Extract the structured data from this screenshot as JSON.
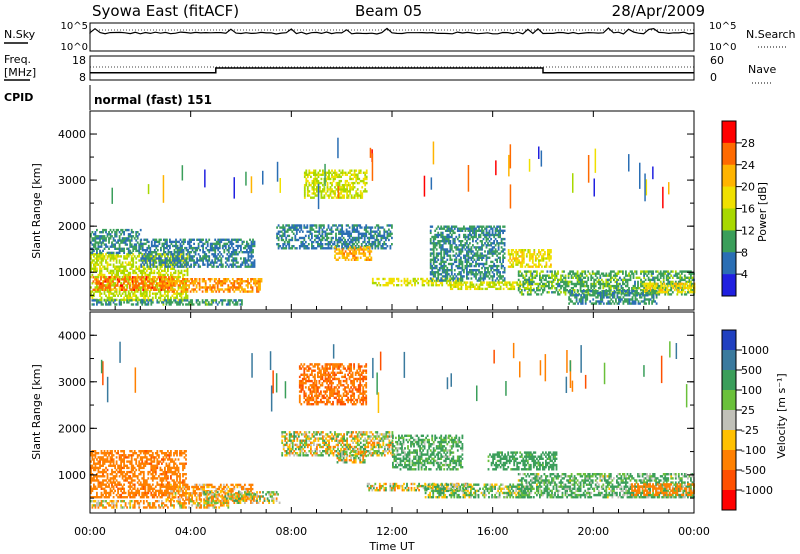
{
  "header": {
    "station": "Syowa East (fitACF)",
    "beam": "Beam 05",
    "date": "28/Apr/2009"
  },
  "top_panels": {
    "nsky": {
      "label": "N.Sky",
      "ticks": [
        "10^5",
        "10^0"
      ]
    },
    "nsearch": {
      "label": "N.Search",
      "ticks": [
        "10^5",
        "10^0"
      ]
    },
    "freq": {
      "label_line1": "Freq.",
      "label_line2": "[MHz]",
      "ticks": [
        "18",
        "8"
      ]
    },
    "nave": {
      "label": "Nave",
      "ticks": [
        "60",
        "0"
      ]
    },
    "cpid": {
      "label": "CPID",
      "value": "normal (fast) 151"
    }
  },
  "power_panel": {
    "ylabel": "Slant Range [km]",
    "colorbar_label": "Power [dB]",
    "colorbar_ticks": [
      "28",
      "24",
      "20",
      "16",
      "12",
      "8",
      "4"
    ],
    "colorbar_colors": [
      "#ff0000",
      "#ff6a00",
      "#ffb400",
      "#f0e000",
      "#a8d800",
      "#3a9e5a",
      "#2a6eb4",
      "#2020e0"
    ]
  },
  "velocity_panel": {
    "ylabel": "Slant Range [km]",
    "colorbar_label": "Velocity [m s⁻¹]",
    "colorbar_ticks": [
      "1000",
      "500",
      "100",
      "25",
      "-25",
      "-100",
      "-500",
      "-1000"
    ],
    "colorbar_colors": [
      "#2040c0",
      "#3a7a9e",
      "#3a9e5a",
      "#6ac03a",
      "#c0c0b8",
      "#ffc000",
      "#ff8000",
      "#ff5000",
      "#ff0000"
    ]
  },
  "xaxis": {
    "label": "Time UT",
    "ticks": [
      "00:00",
      "04:00",
      "08:00",
      "12:00",
      "16:00",
      "20:00",
      "00:00"
    ]
  },
  "chart_data": [
    {
      "type": "line",
      "name": "N.Sky",
      "x_range_hours": [
        0,
        24
      ],
      "yscale": "log",
      "ylim": [
        1,
        100000
      ],
      "description_level": "near top of range throughout"
    },
    {
      "type": "line",
      "name": "Freq.",
      "ylim": [
        8,
        18
      ],
      "x_hours": [
        0,
        5,
        5,
        18,
        18,
        24
      ],
      "values": [
        11,
        11,
        13,
        13,
        11,
        11
      ]
    },
    {
      "type": "heatmap",
      "name": "power",
      "x_range_hours": [
        0,
        24
      ],
      "ylim": [
        180,
        4500
      ],
      "yticks": [
        1000,
        2000,
        3000,
        4000
      ],
      "clim": [
        0,
        30
      ],
      "regions": [
        {
          "t0": 0.0,
          "t1": 3.9,
          "r0": 380,
          "r1": 1400,
          "v": 14
        },
        {
          "t0": 0.1,
          "t1": 3.4,
          "r0": 600,
          "r1": 900,
          "v": 24
        },
        {
          "t0": 3.0,
          "t1": 6.8,
          "r0": 560,
          "r1": 850,
          "v": 22
        },
        {
          "t0": 0.0,
          "t1": 6.0,
          "r0": 280,
          "r1": 400,
          "v": 9
        },
        {
          "t0": 0.0,
          "t1": 2.0,
          "r0": 1400,
          "r1": 1900,
          "v": 8
        },
        {
          "t0": 2.0,
          "t1": 6.5,
          "r0": 1100,
          "r1": 1700,
          "v": 7
        },
        {
          "t0": 8.5,
          "t1": 11.0,
          "r0": 2600,
          "r1": 3200,
          "v": 15
        },
        {
          "t0": 7.4,
          "t1": 12.0,
          "r0": 1500,
          "r1": 2000,
          "v": 7
        },
        {
          "t0": 9.7,
          "t1": 11.2,
          "r0": 1250,
          "r1": 1550,
          "v": 21
        },
        {
          "t0": 11.2,
          "t1": 14.8,
          "r0": 700,
          "r1": 850,
          "v": 16
        },
        {
          "t0": 13.5,
          "t1": 16.5,
          "r0": 800,
          "r1": 2000,
          "v": 8
        },
        {
          "t0": 14.3,
          "t1": 17.6,
          "r0": 620,
          "r1": 800,
          "v": 15
        },
        {
          "t0": 16.6,
          "t1": 18.3,
          "r0": 1100,
          "r1": 1500,
          "v": 17
        },
        {
          "t0": 17.0,
          "t1": 24.0,
          "r0": 500,
          "r1": 1000,
          "v": 10
        },
        {
          "t0": 22.0,
          "t1": 24.0,
          "r0": 550,
          "r1": 750,
          "v": 18
        },
        {
          "t0": 19.0,
          "t1": 22.5,
          "r0": 300,
          "r1": 600,
          "v": 8
        }
      ]
    },
    {
      "type": "heatmap",
      "name": "velocity",
      "x_range_hours": [
        0,
        24
      ],
      "ylim": [
        180,
        4500
      ],
      "yticks": [
        1000,
        2000,
        3000,
        4000
      ],
      "clim": [
        -1000,
        1000
      ],
      "regions": [
        {
          "t0": 0.0,
          "t1": 3.8,
          "r0": 500,
          "r1": 1500,
          "v": -350
        },
        {
          "t0": 0.0,
          "t1": 5.5,
          "r0": 280,
          "r1": 420,
          "v": -110
        },
        {
          "t0": 3.0,
          "t1": 6.5,
          "r0": 450,
          "r1": 800,
          "v": -150
        },
        {
          "t0": 4.5,
          "t1": 7.5,
          "r0": 380,
          "r1": 650,
          "v": 0
        },
        {
          "t0": 8.3,
          "t1": 11.0,
          "r0": 2500,
          "r1": 3400,
          "v": -450
        },
        {
          "t0": 7.6,
          "t1": 12.0,
          "r0": 1400,
          "r1": 1900,
          "v": 0
        },
        {
          "t0": 9.8,
          "t1": 11.0,
          "r0": 1250,
          "r1": 1500,
          "v": 0
        },
        {
          "t0": 11.0,
          "t1": 15.0,
          "r0": 650,
          "r1": 800,
          "v": 0
        },
        {
          "t0": 12.0,
          "t1": 14.8,
          "r0": 1100,
          "r1": 1850,
          "v": 180
        },
        {
          "t0": 13.3,
          "t1": 17.5,
          "r0": 500,
          "r1": 800,
          "v": 80
        },
        {
          "t0": 15.8,
          "t1": 18.5,
          "r0": 1100,
          "r1": 1500,
          "v": 250
        },
        {
          "t0": 17.0,
          "t1": 24.0,
          "r0": 500,
          "r1": 1000,
          "v": 150
        },
        {
          "t0": 21.5,
          "t1": 24.0,
          "r0": 550,
          "r1": 800,
          "v": -300
        }
      ]
    }
  ]
}
